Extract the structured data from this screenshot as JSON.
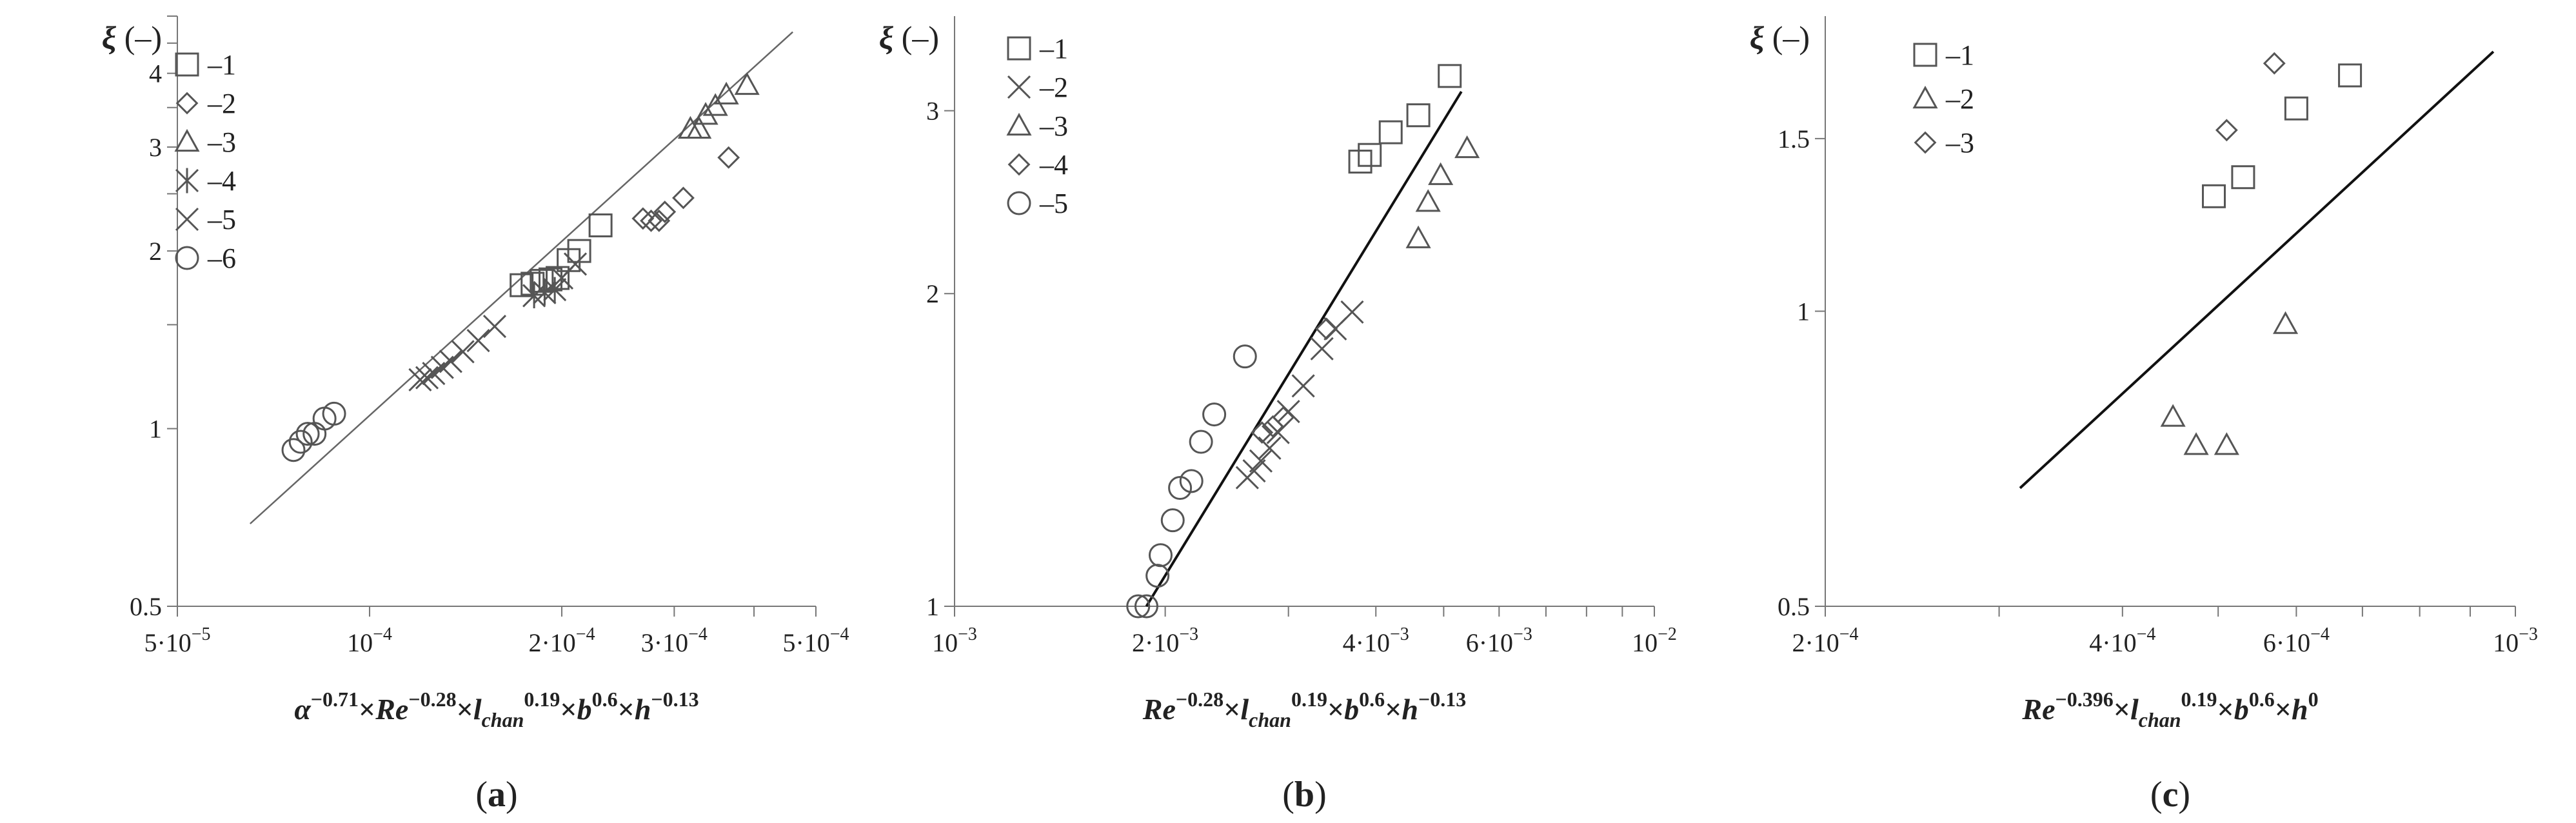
{
  "chart_data": [
    {
      "type": "scatter",
      "panel_label": "(a)",
      "x_scale": "log",
      "y_scale": "log",
      "xlim": [
        5e-05,
        0.0005
      ],
      "ylim": [
        0.5,
        5
      ],
      "ylabel": "ξ (–)",
      "xlabel_parts": [
        {
          "t": "α",
          "i": true
        },
        {
          "t": "−0.71",
          "sup": true
        },
        {
          "t": "×"
        },
        {
          "t": "Re",
          "i": true
        },
        {
          "t": "−0.28",
          "sup": true
        },
        {
          "t": "×"
        },
        {
          "t": "l",
          "i": true
        },
        {
          "t": "chan",
          "sub": true,
          "i": true
        },
        {
          "t": "0.19",
          "sup": true
        },
        {
          "t": "×"
        },
        {
          "t": "b",
          "i": true
        },
        {
          "t": "0.6",
          "sup": true
        },
        {
          "t": "×"
        },
        {
          "t": "h",
          "i": true
        },
        {
          "t": "−0.13",
          "sup": true
        }
      ],
      "x_ticks": [
        {
          "v": 5e-05,
          "label": "5·10−5"
        },
        {
          "v": 0.0001,
          "label": "10−4"
        },
        {
          "v": 0.0002,
          "label": "2·10−4"
        },
        {
          "v": 0.0003,
          "label": "3·10−4"
        },
        {
          "v": 0.0004,
          "label": ""
        },
        {
          "v": 0.0005,
          "label": "5·10−4"
        }
      ],
      "y_ticks": [
        {
          "v": 0.5,
          "label": "0.5"
        },
        {
          "v": 1,
          "label": "1"
        },
        {
          "v": 1.5,
          "label": ""
        },
        {
          "v": 2,
          "label": "2"
        },
        {
          "v": 2.5,
          "label": ""
        },
        {
          "v": 3,
          "label": "3"
        },
        {
          "v": 3.5,
          "label": ""
        },
        {
          "v": 4,
          "label": "4"
        },
        {
          "v": 4.5,
          "label": ""
        },
        {
          "v": 5,
          "label": ""
        }
      ],
      "legend": [
        {
          "marker": "square",
          "label": "–1"
        },
        {
          "marker": "diamond",
          "label": "–2"
        },
        {
          "marker": "triangle",
          "label": "–3"
        },
        {
          "marker": "asterisk",
          "label": "–4"
        },
        {
          "marker": "cross",
          "label": "–5"
        },
        {
          "marker": "circle",
          "label": "–6"
        }
      ],
      "fit_line": {
        "x": [
          6.5e-05,
          0.00046
        ],
        "y": [
          0.69,
          4.7
        ]
      },
      "series": [
        {
          "marker": "square",
          "points": [
            [
              0.000173,
              1.75
            ],
            [
              0.00018,
              1.76
            ],
            [
              0.000186,
              1.78
            ],
            [
              0.000192,
              1.79
            ],
            [
              0.000197,
              1.8
            ],
            [
              0.000205,
              1.93
            ],
            [
              0.000213,
              2.0
            ],
            [
              0.00023,
              2.21
            ]
          ]
        },
        {
          "marker": "diamond",
          "points": [
            [
              0.000268,
              2.27
            ],
            [
              0.000276,
              2.25
            ],
            [
              0.000284,
              2.25
            ],
            [
              0.00029,
              2.33
            ],
            [
              0.00031,
              2.46
            ],
            [
              0.000365,
              2.88
            ]
          ]
        },
        {
          "marker": "triangle",
          "points": [
            [
              0.000318,
              3.22
            ],
            [
              0.000328,
              3.22
            ],
            [
              0.000336,
              3.4
            ],
            [
              0.000348,
              3.52
            ],
            [
              0.000362,
              3.68
            ],
            [
              0.00039,
              3.82
            ]
          ]
        },
        {
          "marker": "asterisk",
          "points": [
            [
              0.000181,
              1.68
            ],
            [
              0.000188,
              1.7
            ],
            [
              0.000195,
              1.72
            ]
          ]
        },
        {
          "marker": "cross",
          "points": [
            [
              0.00012,
              1.21
            ],
            [
              0.000123,
              1.22
            ],
            [
              0.000126,
              1.24
            ],
            [
              0.00013,
              1.27
            ],
            [
              0.000134,
              1.3
            ],
            [
              0.00014,
              1.35
            ],
            [
              0.000148,
              1.41
            ],
            [
              0.000157,
              1.49
            ],
            [
              0.0002,
              1.8
            ],
            [
              0.00021,
              1.9
            ]
          ]
        },
        {
          "marker": "circle",
          "points": [
            [
              7.6e-05,
              0.92
            ],
            [
              7.8e-05,
              0.95
            ],
            [
              8e-05,
              0.98
            ],
            [
              8.2e-05,
              0.98
            ],
            [
              8.5e-05,
              1.04
            ],
            [
              8.8e-05,
              1.06
            ]
          ]
        }
      ]
    },
    {
      "type": "scatter",
      "panel_label": "(b)",
      "x_scale": "log",
      "y_scale": "log",
      "xlim": [
        0.001,
        0.01
      ],
      "ylim": [
        1,
        3.7
      ],
      "ylabel": "ξ (–)",
      "xlabel_parts": [
        {
          "t": "Re",
          "i": true
        },
        {
          "t": "−0.28",
          "sup": true
        },
        {
          "t": "×"
        },
        {
          "t": "l",
          "i": true
        },
        {
          "t": "chan",
          "sub": true,
          "i": true
        },
        {
          "t": "0.19",
          "sup": true
        },
        {
          "t": "×"
        },
        {
          "t": "b",
          "i": true
        },
        {
          "t": "0.6",
          "sup": true
        },
        {
          "t": "×"
        },
        {
          "t": "h",
          "i": true
        },
        {
          "t": "−0.13",
          "sup": true
        }
      ],
      "x_ticks": [
        {
          "v": 0.001,
          "label": "10−3"
        },
        {
          "v": 0.002,
          "label": "2·10−3"
        },
        {
          "v": 0.003,
          "label": ""
        },
        {
          "v": 0.004,
          "label": "4·10−3"
        },
        {
          "v": 0.005,
          "label": ""
        },
        {
          "v": 0.006,
          "label": "6·10−3"
        },
        {
          "v": 0.007,
          "label": ""
        },
        {
          "v": 0.008,
          "label": ""
        },
        {
          "v": 0.009,
          "label": ""
        },
        {
          "v": 0.01,
          "label": "10−2"
        }
      ],
      "y_ticks": [
        {
          "v": 1,
          "label": "1"
        },
        {
          "v": 2,
          "label": "2"
        },
        {
          "v": 3,
          "label": "3"
        }
      ],
      "legend": [
        {
          "marker": "square",
          "label": "–1"
        },
        {
          "marker": "cross",
          "label": "–2"
        },
        {
          "marker": "triangle",
          "label": "–3"
        },
        {
          "marker": "diamond",
          "label": "–4"
        },
        {
          "marker": "circle",
          "label": "–5"
        }
      ],
      "fit_line": {
        "x": [
          0.00188,
          0.0053
        ],
        "y": [
          1.0,
          3.13
        ]
      },
      "series": [
        {
          "marker": "square",
          "points": [
            [
              0.0038,
              2.68
            ],
            [
              0.00392,
              2.72
            ],
            [
              0.0042,
              2.86
            ],
            [
              0.0046,
              2.97
            ],
            [
              0.0051,
              3.24
            ]
          ]
        },
        {
          "marker": "cross",
          "points": [
            [
              0.00262,
              1.33
            ],
            [
              0.00268,
              1.35
            ],
            [
              0.00274,
              1.38
            ],
            [
              0.00282,
              1.42
            ],
            [
              0.0029,
              1.47
            ],
            [
              0.003,
              1.54
            ],
            [
              0.00315,
              1.63
            ],
            [
              0.00335,
              1.77
            ],
            [
              0.0035,
              1.85
            ],
            [
              0.0037,
              1.92
            ]
          ]
        },
        {
          "marker": "triangle",
          "points": [
            [
              0.0046,
              2.26
            ],
            [
              0.00475,
              2.45
            ],
            [
              0.00495,
              2.6
            ],
            [
              0.0054,
              2.76
            ]
          ]
        },
        {
          "marker": "diamond",
          "points": [
            [
              0.00275,
              1.47
            ],
            [
              0.00285,
              1.49
            ],
            [
              0.00295,
              1.52
            ],
            [
              0.0034,
              1.85
            ]
          ]
        },
        {
          "marker": "circle",
          "points": [
            [
              0.00183,
              1.0
            ],
            [
              0.00188,
              1.0
            ],
            [
              0.00195,
              1.07
            ],
            [
              0.00197,
              1.12
            ],
            [
              0.00205,
              1.21
            ],
            [
              0.0021,
              1.3
            ],
            [
              0.00218,
              1.32
            ],
            [
              0.00225,
              1.44
            ],
            [
              0.00235,
              1.53
            ],
            [
              0.0026,
              1.74
            ]
          ]
        }
      ]
    },
    {
      "type": "scatter",
      "panel_label": "(c)",
      "x_scale": "log",
      "y_scale": "log",
      "xlim": [
        0.0002,
        0.001
      ],
      "ylim": [
        0.5,
        2
      ],
      "ylabel": "ξ (–)",
      "xlabel_parts": [
        {
          "t": "Re",
          "i": true
        },
        {
          "t": "−0.396",
          "sup": true
        },
        {
          "t": "×"
        },
        {
          "t": "l",
          "i": true
        },
        {
          "t": "chan",
          "sub": true,
          "i": true
        },
        {
          "t": "0.19",
          "sup": true
        },
        {
          "t": "×"
        },
        {
          "t": "b",
          "i": true
        },
        {
          "t": "0.6",
          "sup": true
        },
        {
          "t": "×"
        },
        {
          "t": "h",
          "i": true
        },
        {
          "t": "0",
          "sup": true
        }
      ],
      "x_ticks": [
        {
          "v": 0.0002,
          "label": "2·10−4"
        },
        {
          "v": 0.0003,
          "label": ""
        },
        {
          "v": 0.0004,
          "label": "4·10−4"
        },
        {
          "v": 0.0005,
          "label": ""
        },
        {
          "v": 0.0006,
          "label": "6·10−4"
        },
        {
          "v": 0.0007,
          "label": ""
        },
        {
          "v": 0.0008,
          "label": ""
        },
        {
          "v": 0.0009,
          "label": ""
        },
        {
          "v": 0.001,
          "label": "10−3"
        }
      ],
      "y_ticks": [
        {
          "v": 0.5,
          "label": "0.5"
        },
        {
          "v": 1,
          "label": "1"
        },
        {
          "v": 1.5,
          "label": "1.5"
        }
      ],
      "legend": [
        {
          "marker": "square",
          "label": "–1"
        },
        {
          "marker": "triangle",
          "label": "–2"
        },
        {
          "marker": "diamond",
          "label": "–3"
        }
      ],
      "fit_line": {
        "x": [
          0.000315,
          0.00095
        ],
        "y": [
          0.66,
          1.84
        ]
      },
      "series": [
        {
          "marker": "square",
          "points": [
            [
              0.000495,
              1.31
            ],
            [
              0.00053,
              1.37
            ],
            [
              0.0006,
              1.61
            ],
            [
              0.00068,
              1.74
            ]
          ]
        },
        {
          "marker": "triangle",
          "points": [
            [
              0.00045,
              0.78
            ],
            [
              0.000475,
              0.73
            ],
            [
              0.00051,
              0.73
            ],
            [
              0.000585,
              0.97
            ]
          ]
        },
        {
          "marker": "diamond",
          "points": [
            [
              0.00051,
              1.53
            ],
            [
              0.00057,
              1.79
            ]
          ]
        }
      ]
    }
  ]
}
